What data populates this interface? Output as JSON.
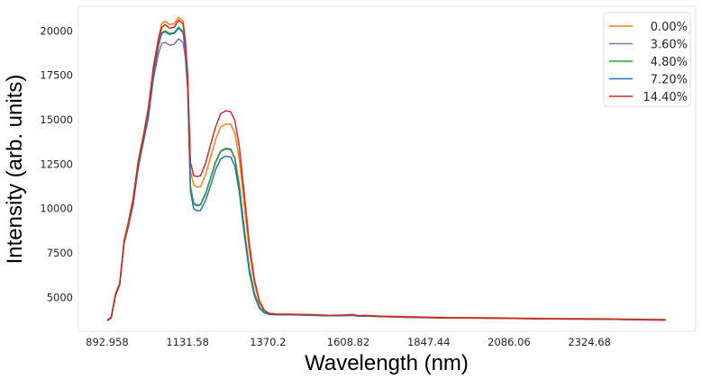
{
  "chart_data": {
    "type": "line",
    "title": "",
    "xlabel": "Wavelength (nm)",
    "ylabel": "Intensity (arb. units)",
    "xlim": [
      807.5,
      2640
    ],
    "ylim": [
      3100,
      21380
    ],
    "grid": false,
    "legend_position": "upper right",
    "x_ticks": [
      892.958,
      1131.58,
      1370.2,
      1608.82,
      1847.44,
      2086.06,
      2324.68
    ],
    "x_tick_labels": [
      "892.958",
      "1131.58",
      "1370.2",
      "1608.82",
      "1847.44",
      "2086.06",
      "2324.68"
    ],
    "y_ticks": [
      5000,
      7500,
      10000,
      12500,
      15000,
      17500,
      20000
    ],
    "y_tick_labels": [
      "5000",
      "7500",
      "10000",
      "12500",
      "15000",
      "17500",
      "20000"
    ],
    "x": [
      893,
      905,
      918,
      930,
      943,
      956,
      970,
      985,
      1000,
      1015,
      1030,
      1045,
      1055,
      1065,
      1078,
      1092,
      1105,
      1118,
      1125,
      1132,
      1140,
      1150,
      1160,
      1170,
      1185,
      1200,
      1215,
      1230,
      1245,
      1260,
      1272,
      1285,
      1300,
      1315,
      1330,
      1345,
      1360,
      1375,
      1400,
      1450,
      1500,
      1550,
      1600,
      1620,
      1640,
      1660,
      1700,
      1800,
      1900,
      2000,
      2100,
      2200,
      2300,
      2400,
      2500,
      2551
    ],
    "series": [
      {
        "name": "0.00%",
        "color": "#ff7f0e",
        "values": [
          3750,
          3900,
          5250,
          5800,
          8250,
          9300,
          10600,
          12700,
          14100,
          15700,
          18000,
          19600,
          20400,
          20550,
          20350,
          20400,
          20750,
          20550,
          19500,
          17300,
          12100,
          11350,
          11200,
          11250,
          11900,
          12900,
          13900,
          14600,
          14750,
          14750,
          14200,
          12800,
          10200,
          7600,
          5800,
          4700,
          4250,
          4100,
          4070,
          4060,
          4040,
          4000,
          4020,
          4050,
          3980,
          4000,
          3960,
          3920,
          3880,
          3870,
          3850,
          3830,
          3820,
          3800,
          3780,
          3770
        ]
      },
      {
        "name": "3.60%",
        "color": "#9467bd",
        "values": [
          3700,
          3850,
          5150,
          5700,
          8050,
          9000,
          10200,
          12300,
          13700,
          15100,
          17300,
          18700,
          19300,
          19350,
          19200,
          19250,
          19550,
          19350,
          18500,
          16700,
          11200,
          10250,
          10150,
          10200,
          10800,
          11700,
          12600,
          13200,
          13350,
          13300,
          12800,
          11300,
          8800,
          6600,
          5200,
          4450,
          4150,
          4050,
          4030,
          4020,
          4000,
          3970,
          3980,
          4000,
          3950,
          3960,
          3930,
          3880,
          3850,
          3840,
          3820,
          3800,
          3790,
          3770,
          3750,
          3740
        ]
      },
      {
        "name": "4.80%",
        "color": "#2ca02c",
        "values": [
          3700,
          3860,
          5170,
          5720,
          8100,
          9050,
          10300,
          12400,
          13800,
          15200,
          17500,
          19200,
          19900,
          20000,
          19850,
          19900,
          20200,
          19950,
          19000,
          16900,
          11250,
          10300,
          10200,
          10250,
          10850,
          11750,
          12650,
          13250,
          13400,
          13350,
          12850,
          11350,
          8850,
          6650,
          5250,
          4480,
          4160,
          4060,
          4040,
          4030,
          4010,
          3980,
          3990,
          4010,
          3960,
          3970,
          3940,
          3890,
          3860,
          3850,
          3830,
          3810,
          3800,
          3780,
          3760,
          3750
        ]
      },
      {
        "name": "7.20%",
        "color": "#1f77b4",
        "values": [
          3700,
          3860,
          5160,
          5710,
          8080,
          9030,
          10280,
          12380,
          13780,
          15180,
          17450,
          19150,
          19850,
          19950,
          19800,
          19850,
          20150,
          19900,
          18950,
          16800,
          11000,
          9980,
          9880,
          9900,
          10450,
          11300,
          12200,
          12800,
          12950,
          12900,
          12400,
          10950,
          8550,
          6400,
          5100,
          4400,
          4130,
          4040,
          4030,
          4020,
          4000,
          3970,
          3980,
          4000,
          3950,
          3960,
          3930,
          3880,
          3850,
          3840,
          3820,
          3800,
          3790,
          3770,
          3750,
          3740
        ]
      },
      {
        "name": "14.40%",
        "color": "#d62728",
        "values": [
          3700,
          3880,
          5200,
          5750,
          8150,
          9150,
          10500,
          12650,
          14050,
          15600,
          17900,
          19500,
          20200,
          20350,
          20150,
          20200,
          20600,
          20400,
          19400,
          17500,
          12600,
          11850,
          11800,
          11850,
          12550,
          13600,
          14600,
          15350,
          15500,
          15450,
          14950,
          13500,
          10800,
          8000,
          6000,
          4800,
          4280,
          4100,
          4060,
          4050,
          4030,
          3990,
          4010,
          4040,
          3960,
          3990,
          3940,
          3900,
          3860,
          3850,
          3830,
          3800,
          3790,
          3770,
          3740,
          3730
        ]
      }
    ]
  },
  "axes": {
    "xlabel": "Wavelength (nm)",
    "ylabel": "Intensity (arb. units)"
  },
  "legend": {
    "entries": [
      "0.00%",
      "3.60%",
      "4.80%",
      "7.20%",
      "14.40%"
    ]
  }
}
